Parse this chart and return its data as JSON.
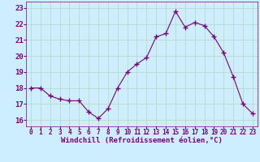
{
  "x": [
    0,
    1,
    2,
    3,
    4,
    5,
    6,
    7,
    8,
    9,
    10,
    11,
    12,
    13,
    14,
    15,
    16,
    17,
    18,
    19,
    20,
    21,
    22,
    23
  ],
  "y": [
    18.0,
    18.0,
    17.5,
    17.3,
    17.2,
    17.2,
    16.5,
    16.1,
    16.7,
    18.0,
    19.0,
    19.5,
    19.9,
    21.2,
    21.4,
    22.8,
    21.8,
    22.1,
    21.9,
    21.2,
    20.2,
    18.7,
    17.0,
    16.4
  ],
  "line_color": "#7b0080",
  "marker": "+",
  "marker_size": 4,
  "bg_color": "#cceeff",
  "grid_color": "#bbddcc",
  "xlabel": "Windchill (Refroidissement éolien,°C)",
  "xlabel_color": "#7b0080",
  "tick_color": "#7b0080",
  "ylim": [
    15.6,
    23.4
  ],
  "xlim": [
    -0.5,
    23.5
  ],
  "yticks": [
    16,
    17,
    18,
    19,
    20,
    21,
    22,
    23
  ],
  "xticks": [
    0,
    1,
    2,
    3,
    4,
    5,
    6,
    7,
    8,
    9,
    10,
    11,
    12,
    13,
    14,
    15,
    16,
    17,
    18,
    19,
    20,
    21,
    22,
    23
  ]
}
